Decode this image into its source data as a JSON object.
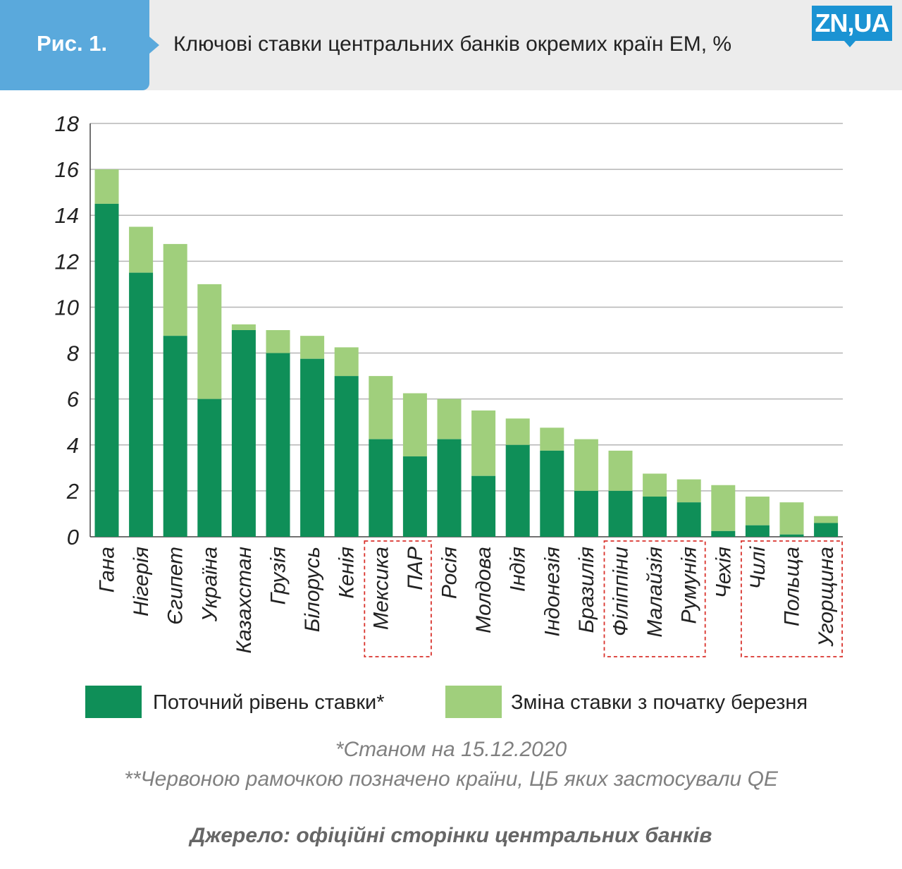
{
  "header": {
    "figure_label": "Рис. 1.",
    "title": "Ключові ставки центральних банків окремих країн ЕМ, %",
    "logo_text": "ZN,UA"
  },
  "colors": {
    "current_rate": "#0f8f58",
    "rate_change": "#a0cf7c",
    "qe_frame": "#d9322c",
    "header_bg": "#ececec",
    "figure_tag": "#5aa9dc",
    "logo": "#1b93d3"
  },
  "chart_data": {
    "type": "bar",
    "stacked": true,
    "title": "",
    "xlabel": "",
    "ylabel": "",
    "ylim": [
      0,
      18
    ],
    "yticks": [
      0,
      2,
      4,
      6,
      8,
      10,
      12,
      14,
      16,
      18
    ],
    "grid": true,
    "legend_position": "bottom",
    "categories": [
      "Гана",
      "Нігерія",
      "Єгипет",
      "Україна",
      "Казахстан",
      "Грузія",
      "Білорусь",
      "Кенія",
      "Мексика",
      "ПАР",
      "Росія",
      "Молдова",
      "Індія",
      "Індонезія",
      "Бразилія",
      "Філіппіни",
      "Малайзія",
      "Румунія",
      "Чехія",
      "Чилі",
      "Польща",
      "Угорщина"
    ],
    "series": [
      {
        "name": "Поточний рівень ставки*",
        "values": [
          14.5,
          11.5,
          8.75,
          6.0,
          9.0,
          8.0,
          7.75,
          7.0,
          4.25,
          3.5,
          4.25,
          2.65,
          4.0,
          3.75,
          2.0,
          2.0,
          1.75,
          1.5,
          0.25,
          0.5,
          0.1,
          0.6
        ]
      },
      {
        "name": "Зміна ставки з початку березня",
        "values": [
          1.5,
          2.0,
          4.0,
          5.0,
          0.25,
          1.0,
          1.0,
          1.25,
          2.75,
          2.75,
          1.75,
          2.85,
          1.15,
          1.0,
          2.25,
          1.75,
          1.0,
          1.0,
          2.0,
          1.25,
          1.4,
          0.3
        ]
      }
    ],
    "qe_groups": [
      [
        "Мексика",
        "ПАР"
      ],
      [
        "Філіппіни",
        "Малайзія",
        "Румунія"
      ],
      [
        "Чилі",
        "Польща",
        "Угорщина"
      ]
    ]
  },
  "legend": {
    "current_label": "Поточний рівень ставки*",
    "change_label": "Зміна ставки з початку березня"
  },
  "notes": {
    "date_note": "*Станом на 15.12.2020",
    "qe_note": "**Червоною рамочкою позначено країни, ЦБ яких застосували QE",
    "source": "Джерело: офіційні сторінки центральних банків"
  }
}
